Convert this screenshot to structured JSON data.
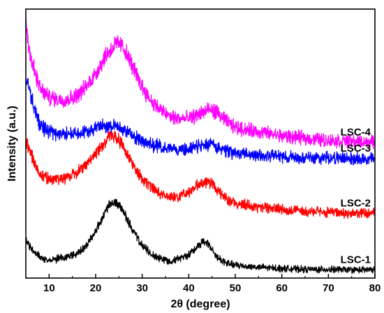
{
  "chart_data": {
    "type": "line",
    "title": "",
    "xlabel": "2θ (degree)",
    "ylabel": "Intensity (a.u.)",
    "xlim": [
      5,
      80
    ],
    "x_ticks": [
      10,
      20,
      30,
      40,
      50,
      60,
      70,
      80
    ],
    "y_ticks_shown": false,
    "grid": false,
    "legend": "inline labels at right end of each curve",
    "series": [
      {
        "name": "LSC-1",
        "color": "#000000",
        "label": "LSC-1",
        "points": [
          [
            5,
            18
          ],
          [
            6,
            14
          ],
          [
            8,
            10
          ],
          [
            10,
            8
          ],
          [
            12,
            9
          ],
          [
            14,
            10
          ],
          [
            16,
            11
          ],
          [
            18,
            15
          ],
          [
            20,
            22
          ],
          [
            22,
            30
          ],
          [
            23,
            34
          ],
          [
            24,
            35
          ],
          [
            25,
            34
          ],
          [
            26,
            31
          ],
          [
            28,
            22
          ],
          [
            30,
            15
          ],
          [
            32,
            11
          ],
          [
            34,
            9
          ],
          [
            36,
            8
          ],
          [
            38,
            9
          ],
          [
            40,
            11
          ],
          [
            42,
            15
          ],
          [
            43,
            17
          ],
          [
            44,
            16
          ],
          [
            46,
            10
          ],
          [
            48,
            7
          ],
          [
            50,
            6
          ],
          [
            55,
            5
          ],
          [
            60,
            4.5
          ],
          [
            65,
            4
          ],
          [
            70,
            4
          ],
          [
            75,
            3.8
          ],
          [
            80,
            3.8
          ]
        ]
      },
      {
        "name": "LSC-2",
        "color": "#ff0000",
        "label": "LSC-2",
        "points": [
          [
            5,
            64
          ],
          [
            6,
            58
          ],
          [
            8,
            48
          ],
          [
            10,
            46
          ],
          [
            12,
            46
          ],
          [
            14,
            47
          ],
          [
            16,
            49
          ],
          [
            18,
            53
          ],
          [
            20,
            58
          ],
          [
            22,
            63
          ],
          [
            23,
            66
          ],
          [
            24,
            66
          ],
          [
            25,
            64
          ],
          [
            26,
            61
          ],
          [
            28,
            53
          ],
          [
            30,
            46
          ],
          [
            32,
            42
          ],
          [
            34,
            39
          ],
          [
            36,
            38
          ],
          [
            38,
            38
          ],
          [
            40,
            40
          ],
          [
            42,
            43
          ],
          [
            44,
            45
          ],
          [
            45,
            44
          ],
          [
            46,
            41
          ],
          [
            48,
            37
          ],
          [
            50,
            35
          ],
          [
            55,
            33
          ],
          [
            60,
            32
          ],
          [
            65,
            31
          ],
          [
            70,
            30.5
          ],
          [
            75,
            30
          ],
          [
            80,
            30
          ]
        ]
      },
      {
        "name": "LSC-3",
        "color": "#0000ff",
        "label": "LSC-3",
        "points": [
          [
            5,
            94
          ],
          [
            6,
            85
          ],
          [
            8,
            71
          ],
          [
            10,
            68
          ],
          [
            12,
            67
          ],
          [
            14,
            67
          ],
          [
            16,
            67
          ],
          [
            18,
            68
          ],
          [
            20,
            70
          ],
          [
            22,
            71
          ],
          [
            23,
            71
          ],
          [
            24,
            71
          ],
          [
            25,
            70
          ],
          [
            26,
            69
          ],
          [
            28,
            66
          ],
          [
            30,
            64
          ],
          [
            32,
            62
          ],
          [
            34,
            61
          ],
          [
            36,
            60
          ],
          [
            38,
            60
          ],
          [
            40,
            60
          ],
          [
            42,
            61
          ],
          [
            44,
            62
          ],
          [
            45,
            62
          ],
          [
            46,
            61
          ],
          [
            48,
            59
          ],
          [
            50,
            58
          ],
          [
            55,
            57
          ],
          [
            60,
            56.5
          ],
          [
            65,
            56
          ],
          [
            70,
            56
          ],
          [
            75,
            55.5
          ],
          [
            80,
            55.5
          ]
        ]
      },
      {
        "name": "LSC-4",
        "color": "#ff00ff",
        "label": "LSC-4",
        "points": [
          [
            5,
            118
          ],
          [
            6,
            103
          ],
          [
            8,
            88
          ],
          [
            10,
            84
          ],
          [
            12,
            83
          ],
          [
            14,
            83
          ],
          [
            16,
            85
          ],
          [
            18,
            89
          ],
          [
            20,
            95
          ],
          [
            22,
            103
          ],
          [
            24,
            108
          ],
          [
            25,
            109
          ],
          [
            26,
            107
          ],
          [
            28,
            98
          ],
          [
            30,
            89
          ],
          [
            32,
            82
          ],
          [
            34,
            78
          ],
          [
            36,
            75
          ],
          [
            38,
            74
          ],
          [
            40,
            74
          ],
          [
            42,
            76
          ],
          [
            44,
            78
          ],
          [
            45,
            78
          ],
          [
            46,
            77
          ],
          [
            48,
            73
          ],
          [
            50,
            70
          ],
          [
            55,
            68
          ],
          [
            60,
            66
          ],
          [
            65,
            65
          ],
          [
            70,
            64
          ],
          [
            75,
            63.5
          ],
          [
            80,
            63
          ]
        ]
      }
    ]
  }
}
